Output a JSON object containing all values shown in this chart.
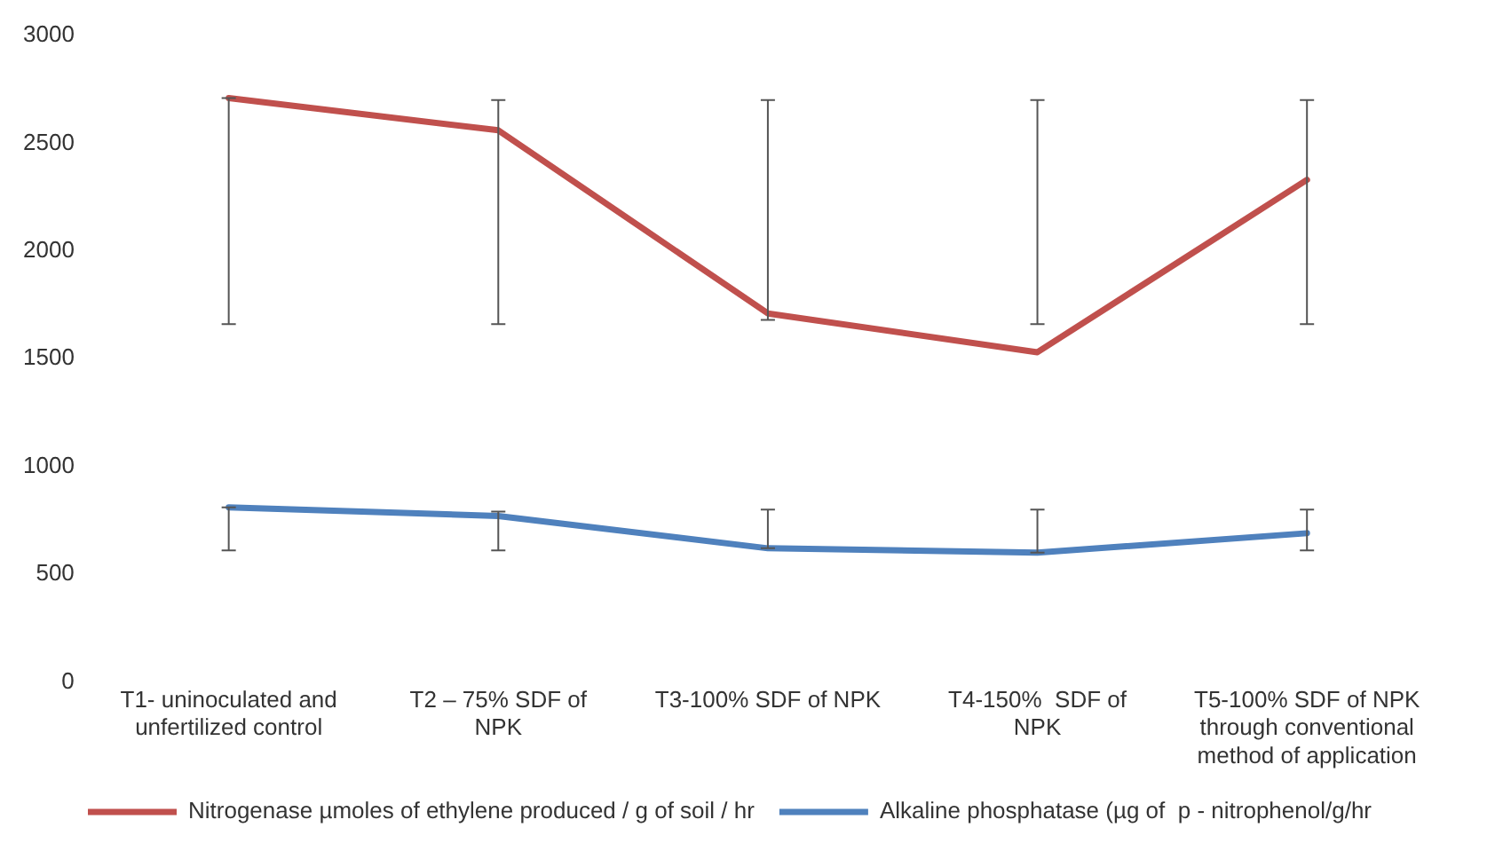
{
  "chart_data": {
    "type": "line",
    "categories": [
      "T1- uninoculated and unfertilized control",
      "T2 – 75% SDF of NPK",
      "T3-100% SDF of NPK",
      "T4-150%  SDF of NPK",
      "T5-100% SDF of NPK through conventional method of application"
    ],
    "series": [
      {
        "name": "Nitrogenase µmoles of ethylene produced / g of soil / hr",
        "color": "#c0504d",
        "values": [
          2710,
          2560,
          1710,
          1530,
          2330
        ],
        "errors": [
          [
            1660,
            2710
          ],
          [
            1660,
            2700
          ],
          [
            1680,
            2700
          ],
          [
            1660,
            2700
          ],
          [
            1660,
            2700
          ]
        ]
      },
      {
        "name": "Alkaline phosphatase (µg of  p - nitrophenol/g/hr",
        "color": "#4f81bd",
        "values": [
          810,
          770,
          620,
          600,
          690
        ],
        "errors": [
          [
            610,
            810
          ],
          [
            610,
            790
          ],
          [
            620,
            800
          ],
          [
            600,
            800
          ],
          [
            610,
            800
          ]
        ]
      }
    ],
    "ylim": [
      0,
      3000
    ],
    "yticks": [
      0,
      500,
      1000,
      1500,
      2000,
      2500,
      3000
    ],
    "grid": false,
    "legend": "bottom",
    "marker": "none",
    "line_style": "solid"
  }
}
